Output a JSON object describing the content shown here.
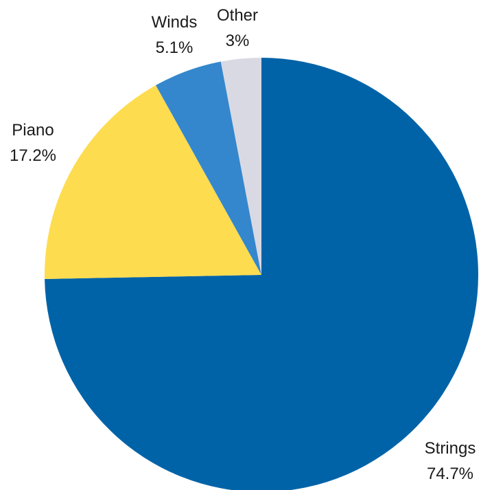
{
  "chart_data": {
    "type": "pie",
    "title": "",
    "start_angle_deg": 0,
    "direction": "clockwise",
    "slices": [
      {
        "label": "Strings",
        "value": 74.7,
        "value_label": "74.7%",
        "color": "#0063a8"
      },
      {
        "label": "Piano",
        "value": 17.2,
        "value_label": "17.2%",
        "color": "#fddc4f"
      },
      {
        "label": "Winds",
        "value": 5.1,
        "value_label": "5.1%",
        "color": "#3487cc"
      },
      {
        "label": "Other",
        "value": 3,
        "value_label": "3%",
        "color": "#d9d9e3"
      }
    ]
  }
}
